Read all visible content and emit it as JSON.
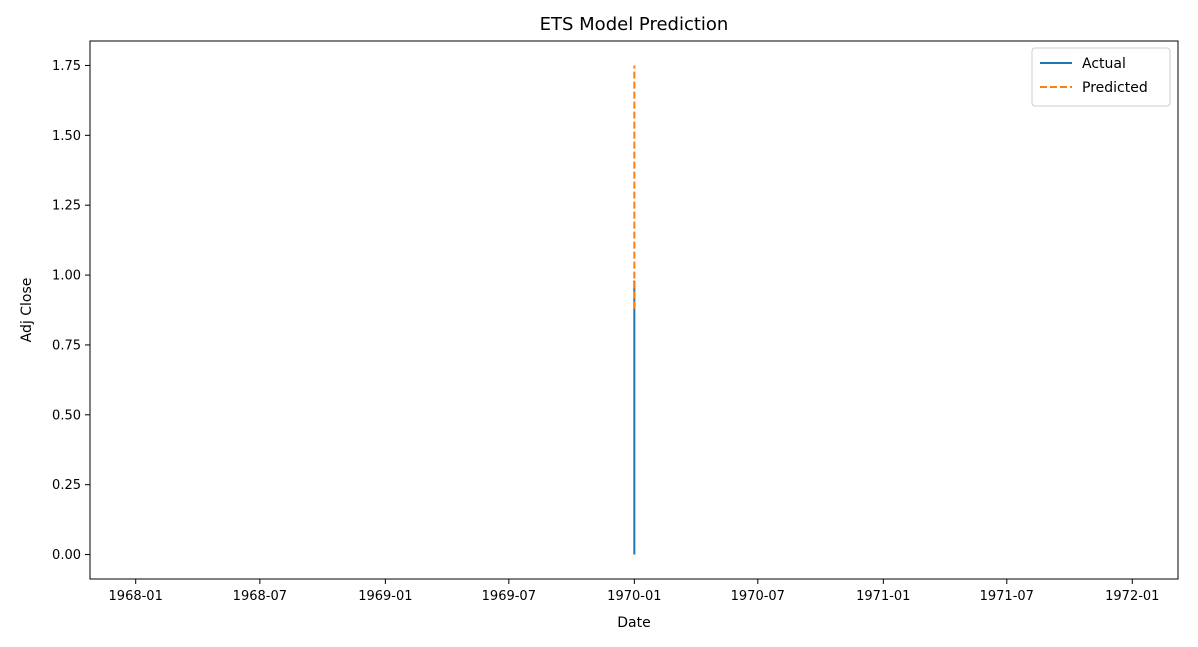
{
  "chart_data": {
    "type": "line",
    "title": "ETS Model Prediction",
    "xlabel": "Date",
    "ylabel": "Adj Close",
    "x_type": "date",
    "xlim": [
      "1967-10-26",
      "1972-03-08"
    ],
    "ylim": [
      -0.0875,
      1.8375
    ],
    "x_ticks": [
      "1968-01",
      "1968-07",
      "1969-01",
      "1969-07",
      "1970-01",
      "1970-07",
      "1971-01",
      "1971-07",
      "1972-01"
    ],
    "y_ticks": [
      "0.00",
      "0.25",
      "0.50",
      "0.75",
      "1.00",
      "1.25",
      "1.50",
      "1.75"
    ],
    "grid": false,
    "legend_position": "top-right",
    "series": [
      {
        "name": "Actual",
        "color": "#1f77b4",
        "line_style": "solid",
        "points": [
          {
            "x": "1970-01-01",
            "y": 0.0
          },
          {
            "x": "1970-01-01",
            "y": 0.98
          }
        ]
      },
      {
        "name": "Predicted",
        "color": "#ff7f0e",
        "line_style": "dashed",
        "points": [
          {
            "x": "1970-01-01",
            "y": 0.88
          },
          {
            "x": "1970-01-01",
            "y": 1.75
          }
        ]
      }
    ]
  }
}
